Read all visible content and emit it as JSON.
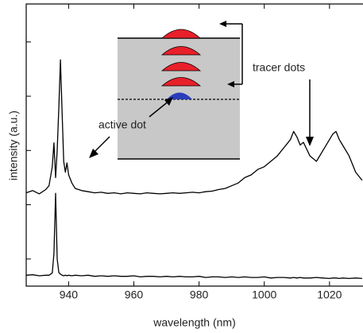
{
  "chart_data": {
    "type": "line",
    "x_label": "wavelength (nm)",
    "y_label": "intensity (a.u.)",
    "annotations": [
      "tracer dots",
      "active dot"
    ],
    "x": [
      927,
      929,
      931,
      933,
      934,
      935,
      935.5,
      936,
      936.5,
      937,
      937.5,
      938,
      938.5,
      939,
      939.5,
      940,
      941,
      942,
      944,
      946,
      948,
      950,
      952,
      954,
      956,
      958,
      960,
      962,
      964,
      966,
      968,
      970,
      972,
      974,
      976,
      978,
      980,
      982,
      984,
      986,
      988,
      990,
      992,
      994,
      996,
      998,
      1000,
      1002,
      1004,
      1006,
      1008,
      1009,
      1010,
      1011,
      1012,
      1014,
      1016,
      1018,
      1020,
      1021,
      1022,
      1023,
      1024,
      1026,
      1028,
      1030
    ],
    "series": [
      {
        "color": "#000000",
        "values": [
          1.72,
          1.76,
          1.7,
          1.78,
          1.85,
          2.2,
          2.64,
          2.0,
          2.5,
          3.3,
          4.17,
          3.2,
          2.3,
          2.1,
          2.27,
          2.05,
          1.9,
          1.8,
          1.76,
          1.74,
          1.72,
          1.73,
          1.71,
          1.72,
          1.7,
          1.72,
          1.71,
          1.7,
          1.72,
          1.71,
          1.7,
          1.71,
          1.72,
          1.71,
          1.72,
          1.73,
          1.72,
          1.74,
          1.75,
          1.78,
          1.8,
          1.85,
          1.9,
          2.0,
          2.05,
          2.15,
          2.2,
          2.3,
          2.4,
          2.55,
          2.7,
          2.85,
          2.75,
          2.6,
          2.65,
          2.4,
          2.3,
          2.5,
          2.7,
          2.8,
          2.85,
          2.7,
          2.6,
          2.4,
          2.1,
          1.95
        ]
      },
      {
        "color": "#000000",
        "values": [
          0.2,
          0.21,
          0.19,
          0.2,
          0.2,
          0.24,
          0.6,
          1.71,
          0.5,
          0.25,
          0.22,
          0.2,
          0.19,
          0.2,
          0.19,
          0.2,
          0.19,
          0.2,
          0.19,
          0.2,
          0.18,
          0.19,
          0.18,
          0.19,
          0.18,
          0.18,
          0.19,
          0.17,
          0.18,
          0.18,
          0.17,
          0.18,
          0.17,
          0.18,
          0.17,
          0.17,
          0.18,
          0.16,
          0.17,
          0.17,
          0.16,
          0.17,
          0.16,
          0.17,
          0.16,
          0.16,
          0.17,
          0.15,
          0.16,
          0.16,
          0.15,
          0.16,
          0.15,
          0.16,
          0.15,
          0.15,
          0.16,
          0.15,
          0.14,
          0.15,
          0.15,
          0.14,
          0.15,
          0.14,
          0.15,
          0.14
        ]
      }
    ],
    "xlim": [
      927,
      1031
    ],
    "xticks": [
      940,
      960,
      980,
      1000,
      1020
    ],
    "ylim": [
      0,
      5.2
    ],
    "yticks": [
      0.5,
      1.5,
      2.5,
      3.5,
      4.5
    ],
    "show_ytick_labels": false
  }
}
